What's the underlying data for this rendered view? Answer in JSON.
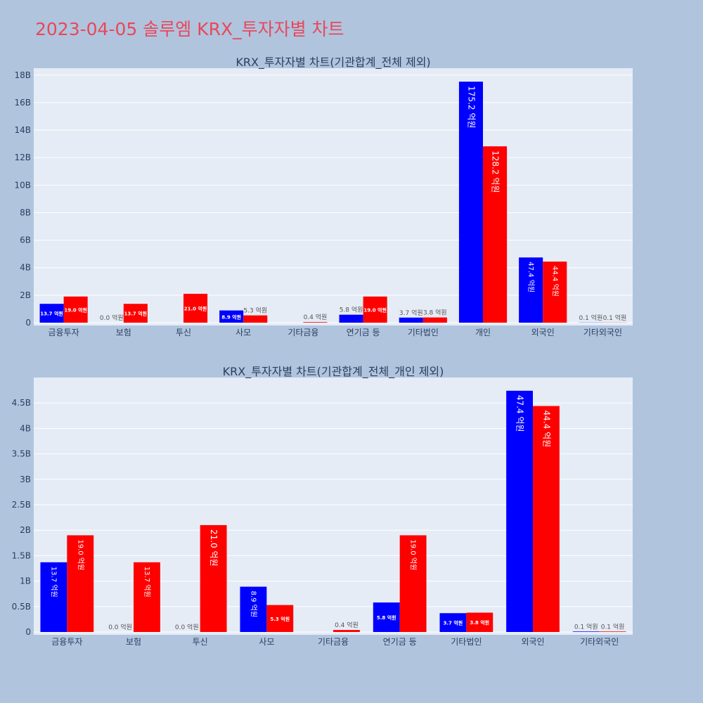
{
  "page": {
    "title": "2023-04-05 솔루엠 KRX_투자자별 차트"
  },
  "colors": {
    "series_a": "#0000ff",
    "series_b": "#ff0000",
    "plot_bg": "#e5ecf6",
    "paper_bg": "#b0c4de",
    "title": "#e8485a"
  },
  "chart_data": [
    {
      "type": "bar",
      "title": "KRX_투자자별 차트(기관합계_전체 제외)",
      "categories": [
        "금융투자",
        "보험",
        "투신",
        "사모",
        "기타금융",
        "연기금 등",
        "기타법인",
        "개인",
        "외국인",
        "기타외국인"
      ],
      "series": [
        {
          "values": [
            1370000000,
            0,
            0,
            890000000,
            0,
            580000000,
            370000000,
            17520000000,
            4740000000,
            10000000
          ],
          "labels": [
            "13.7 억원",
            "0.0 억원",
            "",
            "8.9 억원",
            "",
            "5.8 억원",
            "3.7 억원",
            "175.2 억원",
            "47.4 억원",
            "0.1 억원"
          ]
        },
        {
          "values": [
            1900000000,
            1370000000,
            2100000000,
            530000000,
            40000000,
            1900000000,
            380000000,
            12820000000,
            4440000000,
            10000000
          ],
          "labels": [
            "19.0 억원",
            "13.7 억원",
            "21.0 억원",
            "5.3 억원",
            "0.4 억원",
            "19.0 억원",
            "3.8 억원",
            "128.2 억원",
            "44.4 억원",
            "0.1 억원"
          ]
        }
      ],
      "ylim": [
        0,
        18500000000
      ],
      "yticks": [
        0,
        2000000000,
        4000000000,
        6000000000,
        8000000000,
        10000000000,
        12000000000,
        14000000000,
        16000000000,
        18000000000
      ],
      "ytick_labels": [
        "0",
        "2B",
        "4B",
        "6B",
        "8B",
        "10B",
        "12B",
        "14B",
        "16B",
        "18B"
      ],
      "grid": true,
      "xlabel": "",
      "ylabel": ""
    },
    {
      "type": "bar",
      "title": "KRX_투자자별 차트(기관합계_전체_개인 제외)",
      "categories": [
        "금융투자",
        "보험",
        "투신",
        "사모",
        "기타금융",
        "연기금 등",
        "기타법인",
        "외국인",
        "기타외국인"
      ],
      "series": [
        {
          "values": [
            1370000000,
            0,
            0,
            890000000,
            0,
            580000000,
            370000000,
            4740000000,
            10000000
          ],
          "labels": [
            "13.7 억원",
            "0.0 억원",
            "0.0 억원",
            "8.9 억원",
            "",
            "5.8 억원",
            "3.7 억원",
            "47.4 억원",
            "0.1 억원"
          ]
        },
        {
          "values": [
            1900000000,
            1370000000,
            2100000000,
            530000000,
            40000000,
            1900000000,
            380000000,
            4440000000,
            10000000
          ],
          "labels": [
            "19.0 억원",
            "13.7 억원",
            "21.0 억원",
            "5.3 억원",
            "0.4 억원",
            "19.0 억원",
            "3.8 억원",
            "44.4 억원",
            "0.1 억원"
          ]
        }
      ],
      "ylim": [
        0,
        5000000000
      ],
      "yticks": [
        0,
        500000000,
        1000000000,
        1500000000,
        2000000000,
        2500000000,
        3000000000,
        3500000000,
        4000000000,
        4500000000
      ],
      "ytick_labels": [
        "0",
        "0.5B",
        "1B",
        "1.5B",
        "2B",
        "2.5B",
        "3B",
        "3.5B",
        "4B",
        "4.5B"
      ],
      "grid": true,
      "xlabel": "",
      "ylabel": ""
    }
  ]
}
